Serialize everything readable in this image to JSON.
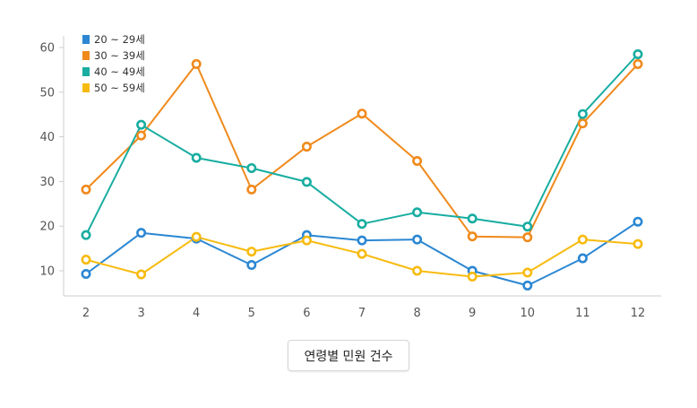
{
  "chart_data": {
    "type": "line",
    "x": [
      2,
      3,
      4,
      5,
      6,
      7,
      8,
      9,
      10,
      11,
      12
    ],
    "ylim": [
      4,
      63
    ],
    "yticks": [
      10,
      20,
      30,
      40,
      50,
      60
    ],
    "grid": false,
    "legend_position": "top-left",
    "series": [
      {
        "name": "20 ~ 29세",
        "color": "#2b87d3",
        "values": [
          9.3,
          18.5,
          17.2,
          11.3,
          18.0,
          16.8,
          17.0,
          10.0,
          6.7,
          12.8,
          21.0
        ]
      },
      {
        "name": "30 ~ 39세",
        "color": "#f08a1c",
        "values": [
          28.2,
          40.3,
          56.3,
          28.2,
          37.8,
          45.2,
          34.6,
          17.7,
          17.5,
          43.0,
          56.3
        ]
      },
      {
        "name": "40 ~ 49세",
        "color": "#18ada1",
        "values": [
          18.0,
          42.7,
          35.3,
          33.0,
          29.9,
          20.5,
          23.1,
          21.7,
          19.9,
          45.1,
          58.5
        ]
      },
      {
        "name": "50 ~ 59세",
        "color": "#f7bb10",
        "values": [
          12.5,
          9.2,
          17.6,
          14.3,
          16.8,
          13.8,
          10.0,
          8.7,
          9.6,
          17.0,
          16.0
        ]
      }
    ]
  },
  "caption_button": {
    "label": "연령별 민원 건수"
  }
}
